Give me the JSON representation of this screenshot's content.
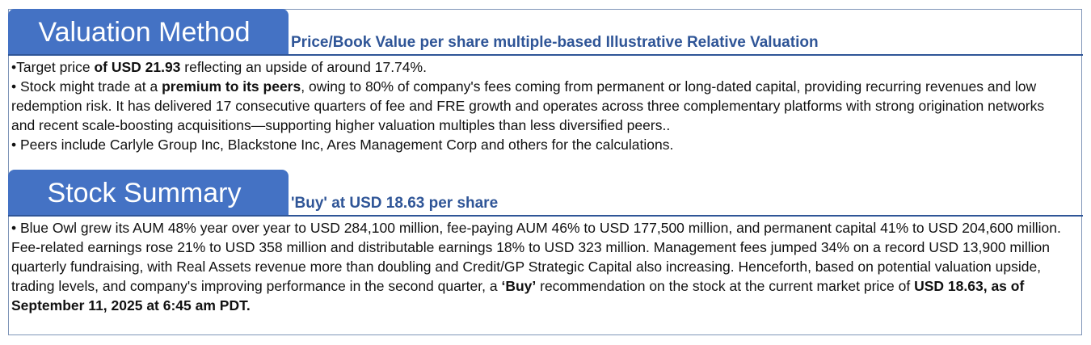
{
  "valuation_method": {
    "tab_title": "Valuation Method",
    "subtitle": "Price/Book Value per share multiple-based Illustrative Relative Valuation",
    "bullets": [
      {
        "marker": "•",
        "parts": [
          "Target price ",
          "of USD 21.93",
          " reflecting an upside of around 17.74%."
        ]
      },
      {
        "marker": "• ",
        "parts": [
          "Stock might trade at a ",
          "premium to its peers",
          ", owing to 80% of company's fees coming from permanent or long-dated capital, providing recurring revenues and low redemption risk. It has delivered 17 consecutive quarters of fee and FRE growth and operates across three complementary platforms with strong origination networks and recent scale-boosting acquisitions—supporting higher valuation multiples than less diversified peers.."
        ]
      },
      {
        "marker": "• ",
        "text": "Peers include Carlyle Group Inc, Blackstone Inc, Ares Management Corp and others for the calculations."
      }
    ]
  },
  "stock_summary": {
    "tab_title": "Stock Summary",
    "subtitle": "'Buy' at USD 18.63 per share",
    "paragraph": {
      "marker": "• ",
      "parts": [
        "Blue Owl grew its AUM 48% year over year to USD 284,100 million, fee-paying AUM 46% to USD 177,500 million, and permanent capital 41% to USD 204,600 million. Fee-related earnings rose 21% to USD 358 million and distributable earnings 18% to USD 323 million. Management fees jumped 34% on a record USD 13,900 million quarterly fundraising, with Real Assets revenue more than doubling and Credit/GP Strategic Capital also increasing. Henceforth, based on potential valuation upside, trading levels, and company's improving performance in the second quarter, a ",
        "‘Buy’",
        " recommendation on the stock at the current market price of ",
        "USD 18.63, as of September 11, 2025 at 6:45 am PDT."
      ]
    }
  },
  "colors": {
    "tab_fill": "#4472c4",
    "subtitle_text": "#2f5597",
    "rule": "#2f5597",
    "frame_border": "#7f95b8"
  }
}
